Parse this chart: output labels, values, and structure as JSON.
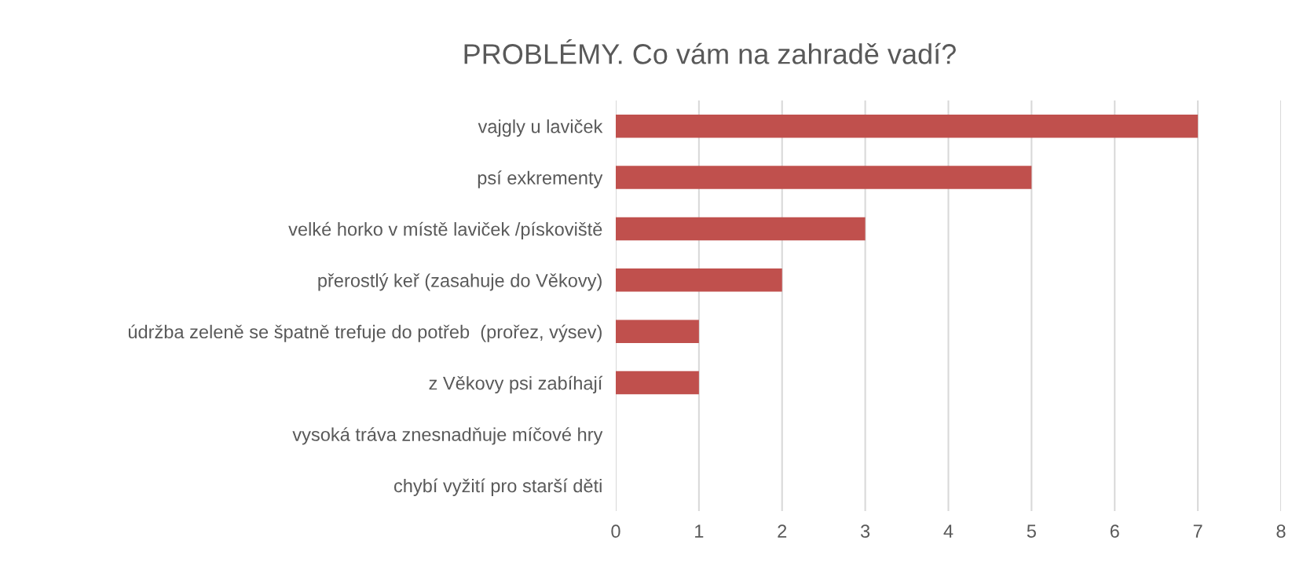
{
  "chart_data": {
    "type": "bar",
    "orientation": "horizontal",
    "title": "PROBLÉMY. Co vám na zahradě vadí?",
    "categories": [
      "vajgly u laviček",
      "psí exkrementy",
      "velké horko v místě laviček /pískoviště",
      "přerostlý keř (zasahuje do Věkovy)",
      "údržba zeleně se špatně trefuje do potřeb  (prořez, výsev)",
      "z Věkovy psi zabíhají",
      "vysoká tráva znesnadňuje míčové hry",
      "chybí vyžití pro starší děti"
    ],
    "values": [
      7,
      5,
      3,
      2,
      1,
      1,
      0,
      0
    ],
    "color": "#c0504d",
    "xlim": [
      0,
      8
    ],
    "xticks": [
      0,
      1,
      2,
      3,
      4,
      5,
      6,
      7,
      8
    ],
    "grid": "x",
    "legend": false
  }
}
